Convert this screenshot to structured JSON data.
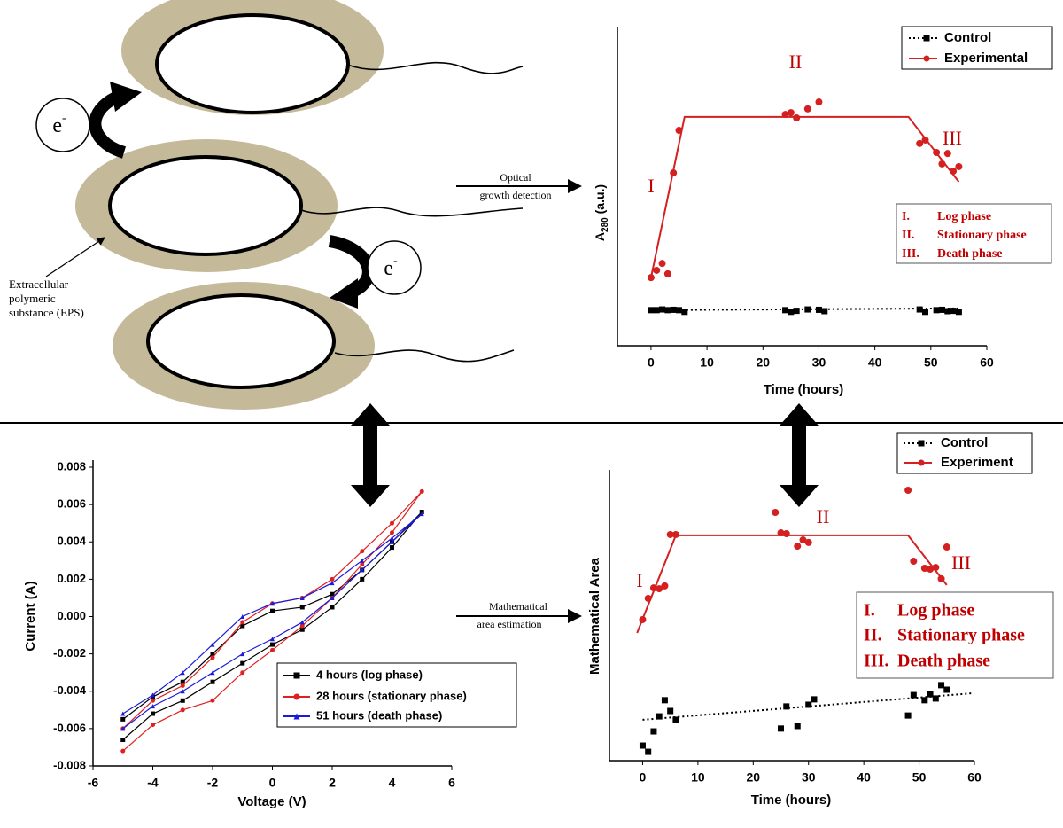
{
  "diagram": {
    "electron": {
      "symbol": "e",
      "charge": "-"
    },
    "eps_label": [
      "Extracellular",
      "polymeric",
      "substance (EPS)"
    ],
    "arrow_top": [
      "Optical",
      "growth detection"
    ],
    "arrow_bottom": [
      "Mathematical",
      "area estimation"
    ]
  },
  "chart_data": [
    {
      "type": "scatter",
      "xlabel": "Time (hours)",
      "ylabel": {
        "main": "A",
        "sub": "280",
        "rest": " (a.u.)"
      },
      "xlim": [
        -6,
        60
      ],
      "ylim": [
        0,
        9
      ],
      "xticks": [
        0,
        10,
        20,
        30,
        40,
        50,
        60
      ],
      "legend": "upper right",
      "series": [
        {
          "name": "Control",
          "color": "#000000",
          "marker": "square",
          "dash": true,
          "x": [
            0,
            1,
            2,
            3,
            4,
            5,
            6,
            24,
            25,
            26,
            28,
            30,
            31,
            48,
            49,
            51,
            52,
            53,
            54,
            55
          ],
          "values": [
            1.03,
            1.03,
            1.05,
            1.03,
            1.04,
            1.03,
            0.98,
            1.03,
            0.98,
            1.01,
            1.05,
            1.04,
            1.0,
            1.05,
            0.98,
            1.03,
            1.04,
            1.0,
            1.01,
            0.98
          ],
          "fit": {
            "x": [
              0,
              55
            ],
            "values": [
              1.03,
              1.08
            ]
          }
        },
        {
          "name": "Experimental",
          "color": "#d42020",
          "marker": "circle",
          "dash": false,
          "x": [
            0,
            1,
            2,
            3,
            4,
            5,
            24,
            25,
            26,
            28,
            30,
            48,
            49,
            51,
            52,
            53,
            54,
            55
          ],
          "values": [
            1.97,
            2.18,
            2.38,
            2.08,
            5.0,
            6.23,
            6.69,
            6.74,
            6.59,
            6.85,
            7.05,
            5.85,
            5.95,
            5.59,
            5.26,
            5.56,
            5.05,
            5.18
          ],
          "fit": {
            "x": [
              0,
              6,
              46,
              55
            ],
            "values": [
              1.97,
              6.62,
              6.62,
              4.74
            ]
          }
        }
      ],
      "annotations": [
        "I",
        "II",
        "III"
      ],
      "phases": [
        {
          "numeral": "I.",
          "text": "Log phase"
        },
        {
          "numeral": "II.",
          "text": "Stationary phase"
        },
        {
          "numeral": "III.",
          "text": "Death phase"
        }
      ]
    },
    {
      "type": "line",
      "xlabel": "Voltage (V)",
      "ylabel": "Current (A)",
      "xlim": [
        -6,
        6
      ],
      "ylim": [
        -0.008,
        0.008
      ],
      "xticks": [
        -6,
        -4,
        -2,
        0,
        2,
        4,
        6
      ],
      "yticks": [
        -0.008,
        -0.006,
        -0.004,
        -0.002,
        {
          "value": 0,
          "label": "0.000"
        },
        0.002,
        0.004,
        0.006,
        0.008
      ],
      "legend": "lower right",
      "series": [
        {
          "name": "4 hours (log phase)",
          "color": "#000000",
          "marker": "square",
          "x": [
            -5,
            -4,
            -3,
            -2,
            -1,
            0,
            1,
            2,
            3,
            4,
            5,
            4,
            3,
            2,
            1,
            0,
            -1,
            -2,
            -3,
            -4,
            -5
          ],
          "values": [
            -0.0055,
            -0.0043,
            -0.0035,
            -0.002,
            -0.0005,
            0.0003,
            0.0005,
            0.0012,
            0.0025,
            0.004,
            0.0056,
            0.0037,
            0.002,
            0.0005,
            -0.0007,
            -0.0015,
            -0.0025,
            -0.0035,
            -0.0045,
            -0.0052,
            -0.0066
          ]
        },
        {
          "name": "28 hours (stationary phase)",
          "color": "#e02020",
          "marker": "circle",
          "x": [
            -5,
            -4,
            -3,
            -2,
            -1,
            0,
            1,
            2,
            3,
            4,
            5,
            4,
            3,
            2,
            1,
            0,
            -1,
            -2,
            -3,
            -4,
            -5
          ],
          "values": [
            -0.006,
            -0.0045,
            -0.0037,
            -0.0022,
            -0.0003,
            0.0007,
            0.001,
            0.002,
            0.0035,
            0.005,
            0.0067,
            0.0045,
            0.0028,
            0.001,
            -0.0005,
            -0.0018,
            -0.003,
            -0.0045,
            -0.005,
            -0.0058,
            -0.0072
          ]
        },
        {
          "name": "51 hours (death phase)",
          "color": "#1a1adc",
          "marker": "triangle",
          "x": [
            -5,
            -4,
            -3,
            -2,
            -1,
            0,
            1,
            2,
            3,
            4,
            5,
            4,
            3,
            2,
            1,
            0,
            -1,
            -2,
            -3,
            -4,
            -5
          ],
          "values": [
            -0.0052,
            -0.0042,
            -0.003,
            -0.0015,
            0.0,
            0.0007,
            0.001,
            0.0018,
            0.003,
            0.0042,
            0.0055,
            0.004,
            0.0025,
            0.001,
            -0.0003,
            -0.0012,
            -0.002,
            -0.003,
            -0.004,
            -0.0048,
            -0.006
          ]
        }
      ]
    },
    {
      "type": "scatter",
      "xlabel": "Time (hours)",
      "ylabel": "Mathematical Area",
      "xlim": [
        -6,
        60
      ],
      "ylim": [
        0,
        10
      ],
      "xticks": [
        0,
        10,
        20,
        30,
        40,
        50,
        60
      ],
      "legend": "upper right",
      "series": [
        {
          "name": "Control",
          "color": "#000000",
          "marker": "square",
          "dash": true,
          "x": [
            0,
            1,
            2,
            3,
            4,
            5,
            6,
            25,
            26,
            28,
            30,
            31,
            48,
            49,
            51,
            52,
            53,
            54,
            55
          ],
          "values": [
            0.53,
            0.31,
            1.03,
            1.56,
            2.13,
            1.75,
            1.44,
            1.13,
            1.91,
            1.22,
            1.97,
            2.16,
            1.59,
            2.31,
            2.13,
            2.34,
            2.19,
            2.66,
            2.5
          ],
          "fit": {
            "x": [
              0,
              60
            ],
            "values": [
              1.44,
              2.38
            ]
          }
        },
        {
          "name": "Experiment",
          "color": "#d42020",
          "marker": "circle",
          "dash": false,
          "x": [
            0,
            1,
            2,
            3,
            4,
            5,
            6,
            24,
            25,
            26,
            28,
            29,
            30,
            48,
            49,
            51,
            52,
            53,
            54,
            55
          ],
          "values": [
            4.97,
            5.72,
            6.09,
            6.06,
            6.16,
            7.97,
            7.97,
            8.75,
            8.03,
            8.0,
            7.56,
            7.78,
            7.69,
            9.53,
            7.03,
            6.78,
            6.75,
            6.81,
            6.41,
            7.53
          ],
          "fit": {
            "x": [
              -1,
              6,
              48,
              55
            ],
            "values": [
              4.5,
              7.94,
              7.94,
              6.19
            ]
          }
        }
      ],
      "annotations": [
        "I",
        "II",
        "III"
      ],
      "phases": [
        {
          "numeral": "I.",
          "text": "Log phase"
        },
        {
          "numeral": "II.",
          "text": "Stationary phase"
        },
        {
          "numeral": "III.",
          "text": "Death phase"
        }
      ]
    }
  ]
}
